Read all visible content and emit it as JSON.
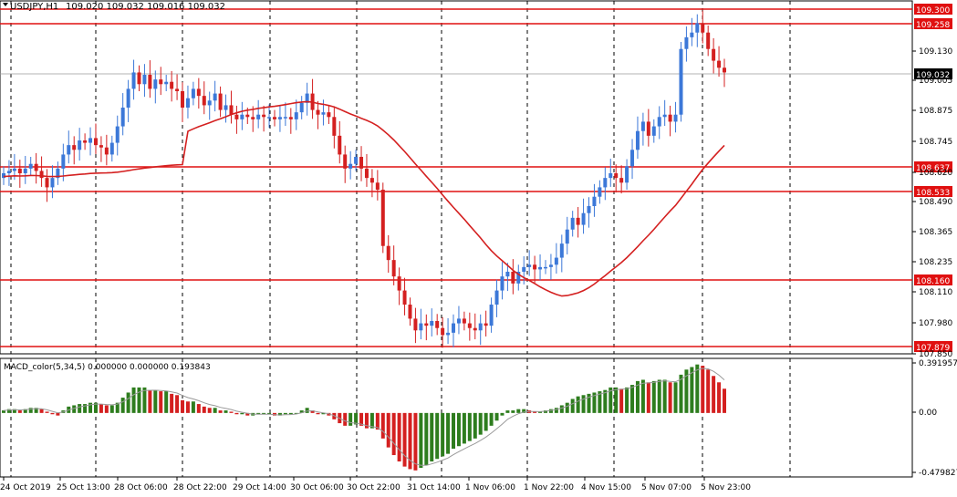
{
  "header": {
    "symbol": "USDJPY,H1",
    "ohlc": "109.020 109.032 109.016 109.032"
  },
  "indicator": {
    "label": "MACD_color(5,34,5) 0.000000 0.000000 0.193843"
  },
  "colors": {
    "bull": "#3c78d8",
    "bear": "#d42020",
    "level_line": "#e01010",
    "ma_line": "#d42020",
    "macd_up": "#2e7d1e",
    "macd_down": "#d42020",
    "signal": "#9a9a9a",
    "grid": "#000000"
  },
  "chart_data": [
    {
      "type": "candlestick",
      "symbol": "USDJPY",
      "timeframe": "H1",
      "y_ticks": [
        "109.300",
        "109.258",
        "109.130",
        "109.005",
        "108.875",
        "108.745",
        "108.620",
        "108.490",
        "108.365",
        "108.235",
        "108.110",
        "107.980",
        "107.850"
      ],
      "ylim": [
        107.85,
        109.32
      ],
      "current_price": "109.032",
      "levels": [
        "109.300",
        "109.258",
        "108.637",
        "108.533",
        "108.160",
        "107.879"
      ],
      "x_labels": [
        "24 Oct 2019",
        "25 Oct 13:00",
        "28 Oct 06:00",
        "28 Oct 22:00",
        "29 Oct 14:00",
        "30 Oct 06:00",
        "30 Oct 22:00",
        "31 Oct 14:00",
        "1 Nov 06:00",
        "1 Nov 22:00",
        "4 Nov 15:00",
        "5 Nov 07:00",
        "5 Nov 23:00"
      ],
      "close_series": [
        108.62,
        108.63,
        108.64,
        108.62,
        108.64,
        108.66,
        108.63,
        108.6,
        108.56,
        108.6,
        108.64,
        108.7,
        108.74,
        108.72,
        108.76,
        108.75,
        108.77,
        108.74,
        108.73,
        108.7,
        108.75,
        108.82,
        108.9,
        108.98,
        109.05,
        109.0,
        109.04,
        108.98,
        109.02,
        109.0,
        109.01,
        108.98,
        108.97,
        108.9,
        108.94,
        108.98,
        108.95,
        108.91,
        108.93,
        108.96,
        108.89,
        108.91,
        108.87,
        108.85,
        108.87,
        108.86,
        108.85,
        108.87,
        108.86,
        108.86,
        108.85,
        108.86,
        108.86,
        108.85,
        108.88,
        108.92,
        108.96,
        108.89,
        108.87,
        108.88,
        108.86,
        108.78,
        108.7,
        108.64,
        108.66,
        108.69,
        108.64,
        108.6,
        108.58,
        108.55,
        108.31,
        108.25,
        108.18,
        108.12,
        108.06,
        108.0,
        107.95,
        107.98,
        107.97,
        107.99,
        107.96,
        107.93,
        107.94,
        107.98,
        108.0,
        107.98,
        107.96,
        107.95,
        107.98,
        107.97,
        108.06,
        108.12,
        108.18,
        108.2,
        108.15,
        108.2,
        108.22,
        108.23,
        108.21,
        108.22,
        108.22,
        108.23,
        108.26,
        108.32,
        108.38,
        108.43,
        108.4,
        108.45,
        108.48,
        108.52,
        108.56,
        108.6,
        108.62,
        108.6,
        108.58,
        108.65,
        108.72,
        108.8,
        108.84,
        108.78,
        108.82,
        108.86,
        108.87,
        108.84,
        108.87,
        109.15,
        109.2,
        109.22,
        109.26,
        109.22,
        109.15,
        109.1,
        109.07,
        109.05
      ],
      "macd_histogram": [
        0.02,
        0.03,
        0.03,
        0.02,
        0.03,
        0.04,
        0.04,
        0.03,
        0.01,
        -0.01,
        -0.02,
        0.02,
        0.05,
        0.06,
        0.07,
        0.07,
        0.08,
        0.08,
        0.07,
        0.06,
        0.06,
        0.08,
        0.12,
        0.16,
        0.2,
        0.2,
        0.2,
        0.18,
        0.18,
        0.17,
        0.17,
        0.15,
        0.14,
        0.1,
        0.09,
        0.09,
        0.07,
        0.05,
        0.04,
        0.04,
        0.02,
        0.02,
        0.01,
        -0.01,
        -0.01,
        -0.02,
        -0.02,
        -0.01,
        -0.01,
        -0.01,
        -0.02,
        -0.02,
        -0.01,
        -0.01,
        0.0,
        0.02,
        0.04,
        0.02,
        -0.01,
        -0.01,
        -0.02,
        -0.05,
        -0.08,
        -0.1,
        -0.1,
        -0.09,
        -0.1,
        -0.12,
        -0.12,
        -0.13,
        -0.2,
        -0.27,
        -0.33,
        -0.38,
        -0.42,
        -0.44,
        -0.45,
        -0.43,
        -0.41,
        -0.38,
        -0.36,
        -0.34,
        -0.32,
        -0.28,
        -0.26,
        -0.24,
        -0.22,
        -0.2,
        -0.17,
        -0.14,
        -0.1,
        -0.06,
        -0.02,
        0.02,
        0.02,
        0.03,
        0.03,
        0.02,
        0.01,
        0.01,
        0.02,
        0.03,
        0.04,
        0.06,
        0.08,
        0.11,
        0.13,
        0.14,
        0.15,
        0.16,
        0.17,
        0.18,
        0.2,
        0.2,
        0.19,
        0.2,
        0.22,
        0.25,
        0.26,
        0.24,
        0.25,
        0.26,
        0.26,
        0.24,
        0.24,
        0.3,
        0.34,
        0.36,
        0.38,
        0.37,
        0.34,
        0.29,
        0.24,
        0.19
      ],
      "macd_ticks": [
        "0.391957",
        "0.00",
        "-0.479827"
      ],
      "macd_ylim": [
        -0.4798,
        0.392
      ]
    }
  ]
}
